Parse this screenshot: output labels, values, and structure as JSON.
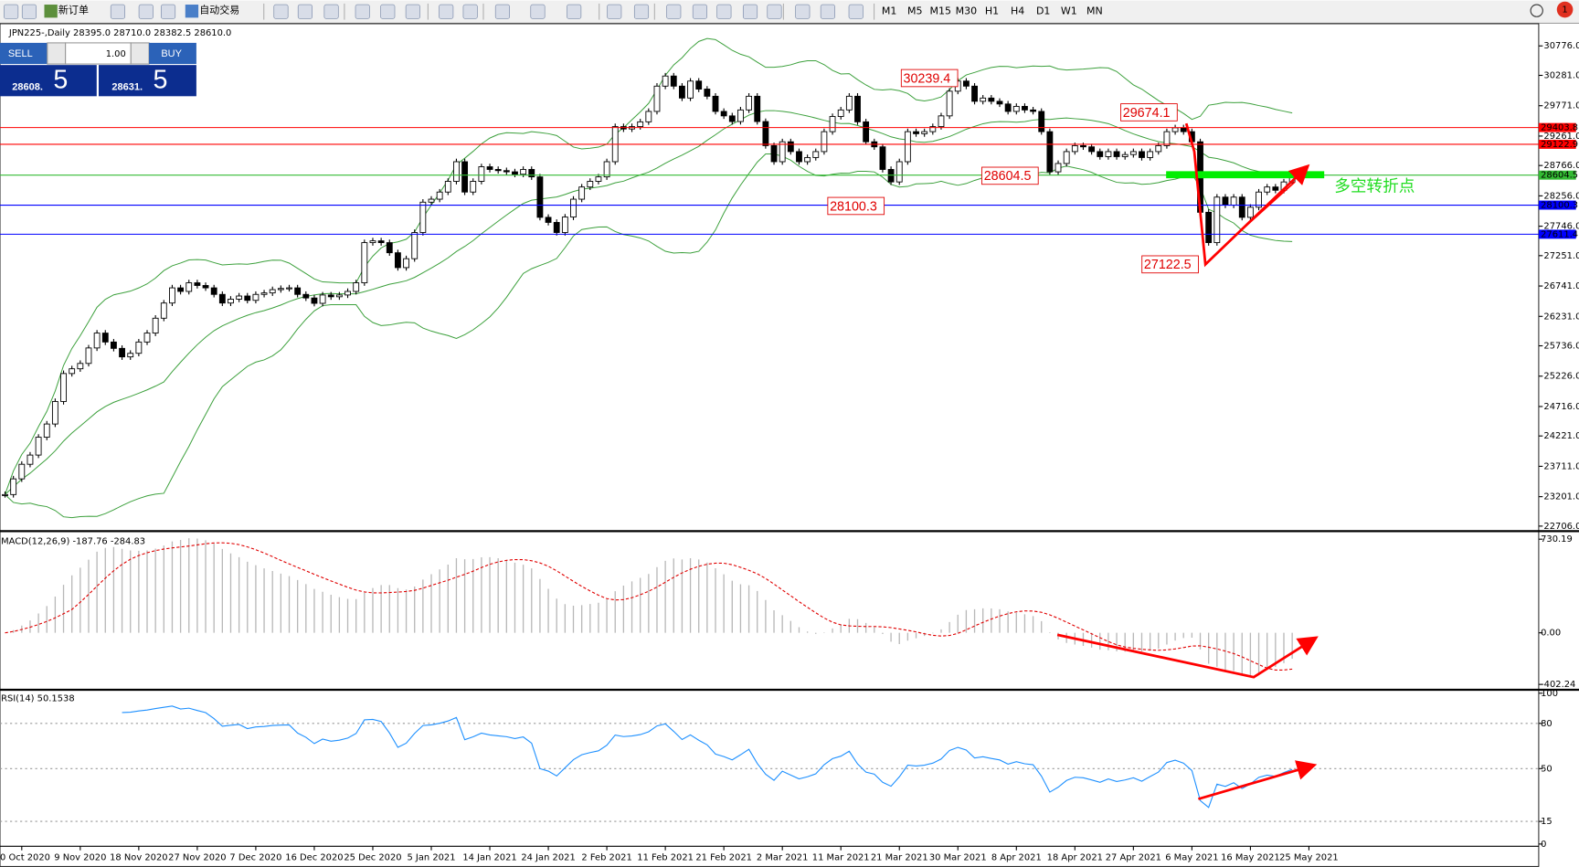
{
  "toolbar": {
    "buttons": [
      "新订单",
      "自动交易"
    ],
    "timeframes": [
      "M1",
      "M5",
      "M15",
      "M30",
      "H1",
      "H4",
      "D1",
      "W1",
      "MN"
    ],
    "badge": "1"
  },
  "trade_panel": {
    "sell": "SELL",
    "lot": "1.00",
    "buy": "BUY",
    "sell_main": "28608.",
    "sell_big": "5",
    "buy_main": "28631.",
    "buy_big": "5"
  },
  "chart_data": {
    "type": "candlestick",
    "header": "JPN225-,Daily  28395.0 28710.0 28382.5 28610.0",
    "closes": [
      23236,
      23500,
      23745,
      23900,
      24200,
      24422,
      24800,
      25270,
      25350,
      25440,
      25700,
      25950,
      25800,
      25693,
      25550,
      25610,
      25800,
      25950,
      26200,
      26455,
      26710,
      26650,
      26795,
      26750,
      26710,
      26600,
      26455,
      26520,
      26573,
      26500,
      26600,
      26625,
      26680,
      26700,
      26710,
      26600,
      26540,
      26450,
      26590,
      26560,
      26590,
      26650,
      26795,
      27470,
      27500,
      27470,
      27300,
      27050,
      27200,
      27640,
      28150,
      28200,
      28320,
      28500,
      28830,
      28320,
      28500,
      28745,
      28700,
      28680,
      28660,
      28620,
      28700,
      28575,
      27895,
      27810,
      27640,
      27900,
      28200,
      28405,
      28500,
      28575,
      28830,
      29420,
      29380,
      29420,
      29500,
      29675,
      30100,
      30270,
      30100,
      29900,
      30185,
      30050,
      29930,
      29675,
      29600,
      29505,
      29700,
      29930,
      29505,
      29100,
      28830,
      29165,
      29000,
      28830,
      28900,
      29000,
      29335,
      29590,
      29700,
      29930,
      29500,
      29165,
      29080,
      28700,
      28490,
      28830,
      29335,
      29300,
      29335,
      29420,
      29600,
      30015,
      30185,
      30100,
      29845,
      29900,
      29845,
      29800,
      29675,
      29760,
      29700,
      29675,
      29335,
      28660,
      28800,
      29000,
      29100,
      29080,
      29000,
      28915,
      29000,
      28915,
      28950,
      29000,
      28900,
      29000,
      29100,
      29335,
      29400,
      29335,
      29165,
      27980,
      27470,
      28235,
      28100,
      28235,
      27895,
      28065,
      28320,
      28405,
      28350,
      28490,
      28610
    ],
    "ylim": [
      22655,
      31115
    ],
    "yticks": [
      {
        "value": 30776,
        "label": "30776.0"
      },
      {
        "value": 30281,
        "label": "30281.0"
      },
      {
        "value": 29771,
        "label": "29771.0"
      },
      {
        "value": 29261,
        "label": "29261.0"
      },
      {
        "value": 28766,
        "label": "28766.0"
      },
      {
        "value": 28256,
        "label": "28256.0"
      },
      {
        "value": 27746,
        "label": "27746.0"
      },
      {
        "value": 27251,
        "label": "27251.0"
      },
      {
        "value": 26741,
        "label": "26741.0"
      },
      {
        "value": 26231,
        "label": "26231.0"
      },
      {
        "value": 25736,
        "label": "25736.0"
      },
      {
        "value": 25226,
        "label": "25226.0"
      },
      {
        "value": 24716,
        "label": "24716.0"
      },
      {
        "value": 24221,
        "label": "24221.0"
      },
      {
        "value": 23711,
        "label": "23711.0"
      },
      {
        "value": 23201,
        "label": "23201.0"
      },
      {
        "value": 22706,
        "label": "22706.0"
      }
    ],
    "levels": [
      {
        "value": 29403.8,
        "color": "#ff0000"
      },
      {
        "value": 29122.9,
        "color": "#ff0000"
      },
      {
        "value": 28604.5,
        "color": "#33bb33"
      },
      {
        "value": 28100.3,
        "color": "#0000ff"
      },
      {
        "value": 27611.4,
        "color": "#0000ff"
      }
    ],
    "annotations": [
      30239.4,
      29674.1,
      28604.5,
      28100.3,
      27122.5
    ],
    "note": "多空转折点",
    "x_labels": [
      "0 Oct 2020",
      "9 Nov 2020",
      "18 Nov 2020",
      "27 Nov 2020",
      "7 Dec 2020",
      "16 Dec 2020",
      "25 Dec 2020",
      "5 Jan 2021",
      "14 Jan 2021",
      "24 Jan 2021",
      "2 Feb 2021",
      "11 Feb 2021",
      "21 Feb 2021",
      "2 Mar 2021",
      "11 Mar 2021",
      "21 Mar 2021",
      "30 Mar 2021",
      "8 Apr 2021",
      "18 Apr 2021",
      "27 Apr 2021",
      "6 May 2021",
      "16 May 2021",
      "25 May 2021"
    ],
    "macd": {
      "header": "MACD(12,26,9) -187.76 -284.83",
      "ylim": [
        -432,
        777
      ],
      "yticks": [
        730.19,
        {
          "value": 0,
          "label": "0.00"
        },
        -402.24
      ]
    },
    "rsi": {
      "header": "RSI(14) 50.1538",
      "ylim": [
        -1.5,
        101.3
      ],
      "yticks": [
        100,
        80,
        50,
        15,
        0
      ],
      "levels": [
        80,
        50,
        15
      ]
    }
  }
}
